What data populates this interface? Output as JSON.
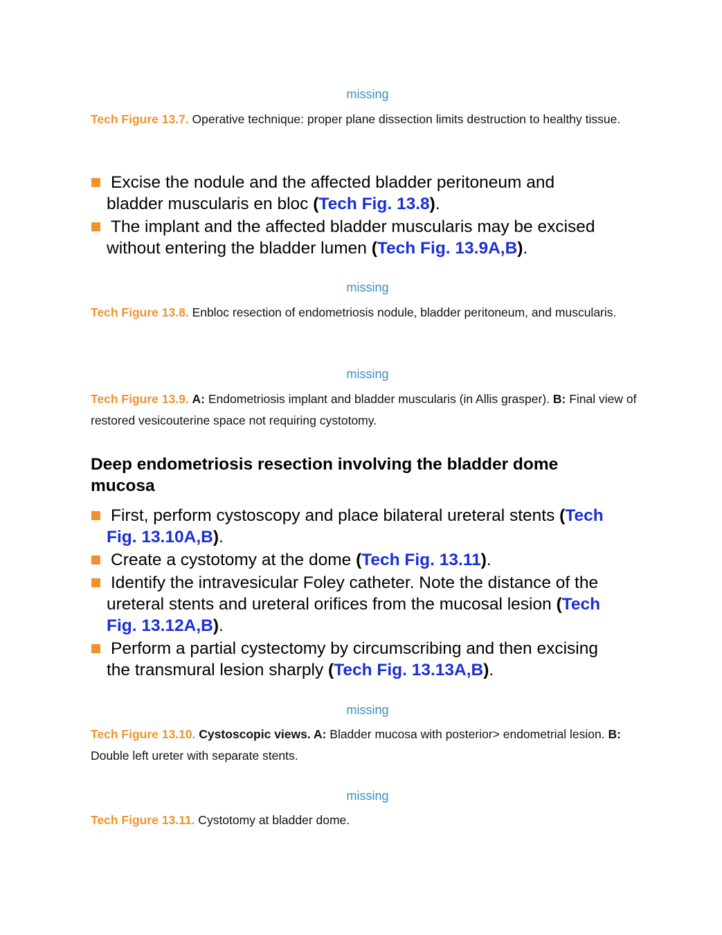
{
  "placeholders": {
    "p1": "missing",
    "p2": "missing",
    "p3": "missing",
    "p4": "missing",
    "p5": "missing"
  },
  "captions": {
    "c1": {
      "label": "Tech Figure 13.7.",
      "text": " Operative technique: proper plane dissection limits destruction to healthy tissue."
    },
    "c2": {
      "label": "Tech Figure 13.8.",
      "text": " Enbloc resection of endometriosis nodule, bladder peritoneum, and muscularis."
    },
    "c3": {
      "label": "Tech Figure 13.9.",
      "a_label": "A:",
      "a_text": " Endometriosis implant and bladder muscularis (in Allis grasper). ",
      "b_label": "B:",
      "b_text": " Final view of restored vesicouterine space not requiring cystotomy."
    },
    "c4": {
      "label": "Tech Figure 13.10.",
      "bold_text": " Cystoscopic views. A:",
      "a_text": " Bladder mucosa with posterior> endometrial lesion. ",
      "b_label": "B:",
      "b_text": " Double left ureter with separate stents."
    },
    "c5": {
      "label": "Tech Figure 13.11.",
      "text": " Cystotomy at bladder dome."
    }
  },
  "bullets1": [
    {
      "line1": "Excise the nodule and the affected bladder peritoneum and",
      "line2": "bladder muscularis en bloc ",
      "paren_open": "(",
      "link": "Tech Fig. 13.8",
      "paren_close": ")",
      "end": "."
    },
    {
      "line1": "The implant and the affected bladder muscularis may be excised",
      "line2": "without entering the bladder lumen ",
      "paren_open": "(",
      "link": "Tech Fig. 13.9A,B",
      "paren_close": ")",
      "end": "."
    }
  ],
  "heading": "Deep endometriosis resection involving the bladder dome mucosa",
  "bullets2": [
    {
      "text": "First, perform cystoscopy and place bilateral ureteral stents ",
      "paren_open": "(",
      "link_a": "Tech",
      "link_b": "Fig. 13.10A,B",
      "paren_close": ")",
      "end": "."
    },
    {
      "text": "Create a cystotomy at the dome ",
      "paren_open": "(",
      "link": "Tech Fig. 13.11",
      "paren_close": ")",
      "end": "."
    },
    {
      "line1": "Identify the intravesicular Foley catheter. Note the distance of the",
      "line2": "ureteral stents and ureteral orifices from the mucosal lesion ",
      "paren_open": "(",
      "link_a": "Tech",
      "link_b": "Fig. 13.12A,B",
      "paren_close": ")",
      "end": "."
    },
    {
      "line1": "Perform a partial cystectomy by circumscribing and then excising",
      "line2": "the transmural lesion sharply ",
      "paren_open": "(",
      "link": "Tech Fig. 13.13A,B",
      "paren_close": ")",
      "end": "."
    }
  ]
}
